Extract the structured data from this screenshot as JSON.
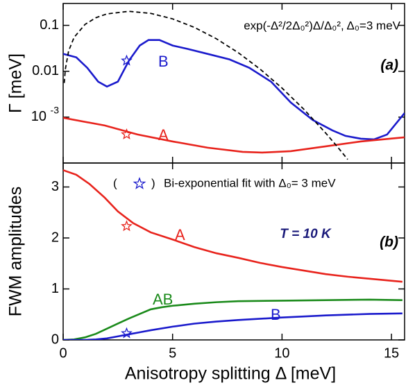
{
  "chart_data": [
    {
      "type": "line",
      "yscale": "log",
      "ylabel": "Γ [meV]",
      "panel_label": "(a)",
      "xlim": [
        0,
        15.6
      ],
      "ylim": [
        0.0001,
        0.3
      ],
      "yticks": [
        0.1,
        0.01,
        {
          "value": 0.001,
          "label": "10",
          "exponent": "-3"
        }
      ],
      "series": [
        {
          "name": "B",
          "color": "#1a1acc",
          "style": "solid",
          "x": [
            0,
            0.6,
            1.1,
            1.6,
            2.0,
            2.5,
            3.0,
            3.5,
            3.9,
            4.4,
            5.0,
            5.7,
            6.6,
            7.6,
            8.5,
            9.5,
            10.4,
            11.4,
            12.3,
            12.9,
            13.6,
            14.2,
            14.8,
            15.6
          ],
          "values": [
            0.0239,
            0.0201,
            0.0119,
            0.00593,
            0.00464,
            0.00593,
            0.0169,
            0.0364,
            0.048,
            0.048,
            0.0364,
            0.0305,
            0.0239,
            0.0181,
            0.0119,
            0.00593,
            0.00208,
            0.00087,
            0.000515,
            0.00039,
            0.000339,
            0.000327,
            0.000418,
            0.00123
          ]
        },
        {
          "name": "A",
          "color": "#e8231c",
          "style": "solid",
          "x": [
            0,
            1.9,
            3.4,
            5.0,
            6.6,
            8.2,
            9.1,
            10.4,
            12.0,
            13.6,
            15.6
          ],
          "values": [
            0.000967,
            0.000658,
            0.000418,
            0.000295,
            0.000216,
            0.000175,
            0.000169,
            0.000181,
            0.000231,
            0.000295,
            0.000364
          ]
        },
        {
          "name": "exp(-Δ²/2Δ₀²)Δ/Δ₀²,  Δ₀=3 meV",
          "color": "#000000",
          "style": "dashed",
          "x": [
            0.05,
            0.1,
            0.25,
            0.5,
            1,
            1.5,
            2,
            3,
            4,
            5,
            6,
            7,
            8,
            9,
            10,
            11,
            12,
            12.5,
            13
          ],
          "values": [
            0.00555,
            0.0111,
            0.0277,
            0.0548,
            0.1051,
            0.1471,
            0.1779,
            0.2022,
            0.1827,
            0.1386,
            0.0902,
            0.0511,
            0.0254,
            0.0111,
            0.0043,
            0.00148,
            0.000447,
            0.000235,
            0.00012
          ]
        }
      ],
      "fit": {
        "marker": "star",
        "x": [
          2.9,
          2.9
        ],
        "values": [
          0.017,
          0.00042
        ],
        "colors": [
          "#1a1acc",
          "#e8231c"
        ]
      }
    },
    {
      "type": "line",
      "yscale": "linear",
      "ylabel": "FWM amplitudes",
      "xlabel": "Anisotropy splitting Δ [meV]",
      "panel_label": "(b)",
      "annotation": "T = 10 K",
      "xlim": [
        0,
        15.6
      ],
      "xticks": [
        0,
        5,
        10,
        15
      ],
      "ylim": [
        0,
        3.47
      ],
      "yticks": [
        0,
        1,
        2,
        3
      ],
      "series": [
        {
          "name": "A",
          "color": "#e8231c",
          "style": "solid",
          "x": [
            0,
            0.6,
            1.2,
            1.9,
            2.5,
            3.2,
            4,
            5,
            6,
            7,
            8,
            9,
            10,
            11,
            12,
            13,
            14,
            15.5
          ],
          "values": [
            3.33,
            3.24,
            3.06,
            2.79,
            2.52,
            2.29,
            2.11,
            1.97,
            1.82,
            1.7,
            1.61,
            1.51,
            1.43,
            1.36,
            1.29,
            1.24,
            1.2,
            1.14
          ]
        },
        {
          "name": "AB",
          "color": "#1a8a1a",
          "style": "solid",
          "x": [
            0,
            0.5,
            1,
            1.5,
            2,
            2.5,
            3,
            3.5,
            4,
            4.5,
            5,
            6,
            7,
            8,
            10,
            12,
            14,
            15.5
          ],
          "values": [
            0,
            0.01,
            0.05,
            0.12,
            0.22,
            0.32,
            0.42,
            0.51,
            0.6,
            0.64,
            0.67,
            0.71,
            0.74,
            0.76,
            0.77,
            0.78,
            0.79,
            0.78
          ]
        },
        {
          "name": "B",
          "color": "#1a1acc",
          "style": "solid",
          "x": [
            0,
            1,
            1.5,
            2,
            2.5,
            3,
            3.5,
            4,
            5,
            6,
            7,
            8,
            10,
            12,
            14,
            15.5
          ],
          "values": [
            0,
            0,
            0.01,
            0.03,
            0.07,
            0.11,
            0.15,
            0.19,
            0.26,
            0.32,
            0.36,
            0.39,
            0.44,
            0.48,
            0.51,
            0.52
          ]
        }
      ],
      "fit": {
        "marker": "star",
        "label": "Bi-exponential fit with Δ₀= 3 meV",
        "x": [
          2.9,
          2.9
        ],
        "values": [
          2.23,
          0.13
        ],
        "colors": [
          "#e8231c",
          "#1a1acc"
        ]
      }
    }
  ]
}
